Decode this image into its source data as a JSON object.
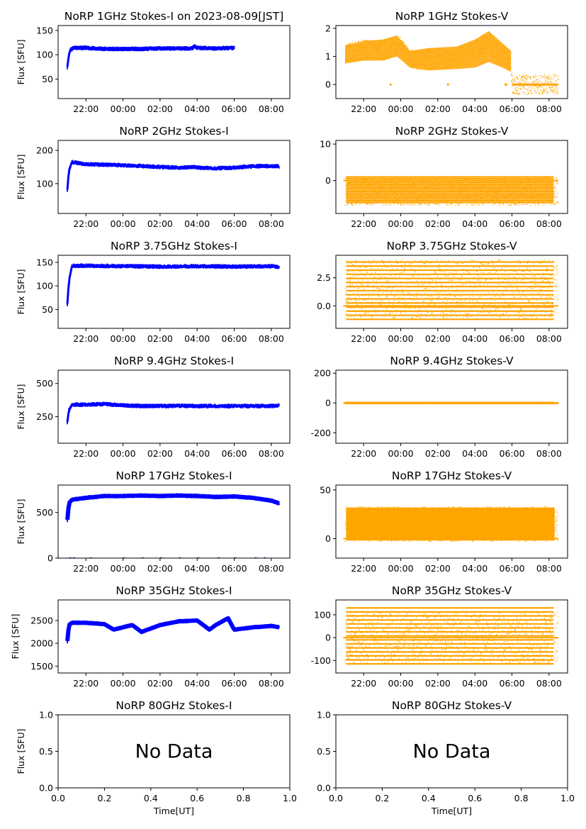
{
  "figure": {
    "xlabel": "Time[UT]",
    "ylabel": "Flux [SFU]",
    "no_data_text": "No Data",
    "time_ticks": [
      "22:00",
      "00:00",
      "02:00",
      "04:00",
      "06:00",
      "08:00"
    ],
    "unit_ticks": [
      "0.0",
      "0.2",
      "0.4",
      "0.6",
      "0.8",
      "1.0"
    ],
    "colors": {
      "stokes_i": "#0000ff",
      "stokes_v": "#ffa500",
      "axes": "#000000"
    }
  },
  "chart_data": [
    {
      "type": "scatter",
      "title": "NoRP 1GHz Stokes-I on 2023-08-09[JST]",
      "ylabel": "Flux [SFU]",
      "ylim": [
        10,
        160
      ],
      "yticks": [
        "50",
        "100",
        "150"
      ],
      "xlim": [
        "20:30",
        "09:00"
      ],
      "start": "21:00",
      "end": "06:00",
      "series": [
        {
          "x": [
            "21:00",
            "21:05",
            "21:10",
            "21:20",
            "22:00",
            "23:00",
            "00:00",
            "01:00",
            "02:00",
            "03:00",
            "03:45",
            "03:50",
            "04:00",
            "05:00",
            "06:00"
          ],
          "values": [
            75,
            100,
            110,
            114,
            114,
            112,
            112,
            112,
            113,
            113,
            113,
            118,
            114,
            113,
            114
          ]
        }
      ]
    },
    {
      "type": "scatter",
      "title": "NoRP 1GHz Stokes-V",
      "ylim": [
        -0.5,
        2.1
      ],
      "yticks": [
        "0",
        "1",
        "2"
      ],
      "xlim": [
        "20:30",
        "09:00"
      ],
      "start": "21:00",
      "end": "08:30",
      "series": [
        {
          "x": [
            "21:00",
            "22:00",
            "23:00",
            "00:00",
            "00:30",
            "01:00",
            "02:00",
            "03:00",
            "04:00",
            "04:45",
            "05:00",
            "05:30",
            "05:55",
            "06:00",
            "07:00",
            "08:30"
          ],
          "values": [
            1.1,
            1.25,
            1.2,
            1.35,
            0.9,
            0.85,
            0.95,
            0.9,
            1.2,
            1.6,
            1.3,
            1.0,
            0.8,
            0,
            0,
            0
          ]
        }
      ]
    },
    {
      "type": "scatter",
      "title": "NoRP 2GHz Stokes-I",
      "ylim": [
        10,
        230
      ],
      "yticks": [
        "100",
        "200"
      ],
      "xlim": [
        "20:30",
        "09:00"
      ],
      "start": "21:00",
      "end": "08:25",
      "series": [
        {
          "x": [
            "21:00",
            "21:05",
            "21:15",
            "22:00",
            "23:00",
            "00:00",
            "01:00",
            "02:00",
            "03:00",
            "03:50",
            "04:00",
            "05:00",
            "06:00",
            "07:00",
            "08:00",
            "08:25"
          ],
          "values": [
            82,
            140,
            165,
            158,
            157,
            155,
            153,
            150,
            148,
            150,
            148,
            146,
            148,
            152,
            153,
            152
          ]
        }
      ]
    },
    {
      "type": "scatter",
      "title": "NoRP 2GHz Stokes-V",
      "ylim": [
        -9,
        11
      ],
      "yticks": [
        "0",
        "10"
      ],
      "xlim": [
        "20:30",
        "09:00"
      ],
      "start": "21:00",
      "end": "08:30",
      "series": [
        {
          "x": [
            "21:00",
            "08:30"
          ],
          "values": [
            -3,
            -3
          ]
        }
      ]
    },
    {
      "type": "scatter",
      "title": "NoRP 3.75GHz Stokes-I",
      "ylim": [
        10,
        165
      ],
      "yticks": [
        "50",
        "100",
        "150"
      ],
      "xlim": [
        "20:30",
        "09:00"
      ],
      "start": "21:00",
      "end": "08:25",
      "series": [
        {
          "x": [
            "21:00",
            "21:05",
            "21:15",
            "22:00",
            "00:00",
            "02:00",
            "04:00",
            "06:00",
            "08:00",
            "08:25"
          ],
          "values": [
            62,
            110,
            143,
            143,
            142,
            141,
            142,
            141,
            142,
            140
          ]
        }
      ]
    },
    {
      "type": "scatter",
      "title": "NoRP 3.75GHz Stokes-V",
      "ylim": [
        -2,
        4.5
      ],
      "yticks": [
        "0.0",
        "2.5"
      ],
      "xlim": [
        "20:30",
        "09:00"
      ],
      "start": "21:00",
      "end": "08:30",
      "series": [
        {
          "x": [
            "21:00",
            "08:30"
          ],
          "values": [
            1.5,
            1.5
          ]
        }
      ]
    },
    {
      "type": "scatter",
      "title": "NoRP 9.4GHz Stokes-I",
      "ylim": [
        50,
        600
      ],
      "yticks": [
        "250",
        "500"
      ],
      "xlim": [
        "20:30",
        "09:00"
      ],
      "start": "21:00",
      "end": "08:25",
      "series": [
        {
          "x": [
            "21:00",
            "21:05",
            "21:15",
            "22:00",
            "23:00",
            "00:00",
            "01:00",
            "02:00",
            "03:00",
            "04:00",
            "06:00",
            "08:00",
            "08:25"
          ],
          "values": [
            210,
            300,
            340,
            340,
            345,
            335,
            330,
            330,
            332,
            330,
            330,
            330,
            335
          ]
        }
      ]
    },
    {
      "type": "scatter",
      "title": "NoRP 9.4GHz Stokes-V",
      "ylim": [
        -270,
        220
      ],
      "yticks": [
        "-200",
        "0",
        "200"
      ],
      "xlim": [
        "20:30",
        "09:00"
      ],
      "start": "21:00",
      "end": "08:30",
      "series": [
        {
          "x": [
            "21:00",
            "08:30"
          ],
          "values": [
            0,
            0
          ]
        }
      ]
    },
    {
      "type": "scatter",
      "title": "NoRP 17GHz Stokes-I",
      "ylim": [
        0,
        800
      ],
      "yticks": [
        "0",
        "500"
      ],
      "xlim": [
        "20:30",
        "09:00"
      ],
      "start": "21:00",
      "end": "08:25",
      "series": [
        {
          "x": [
            "21:00",
            "21:05",
            "21:15",
            "22:00",
            "23:00",
            "00:00",
            "01:00",
            "02:00",
            "03:00",
            "04:00",
            "05:00",
            "06:00",
            "07:00",
            "08:00",
            "08:25"
          ],
          "values": [
            420,
            600,
            640,
            660,
            680,
            680,
            685,
            680,
            685,
            680,
            670,
            675,
            660,
            630,
            600
          ]
        }
      ]
    },
    {
      "type": "scatter",
      "title": "NoRP 17GHz Stokes-V",
      "ylim": [
        -20,
        55
      ],
      "yticks": [
        "0",
        "50"
      ],
      "xlim": [
        "20:30",
        "09:00"
      ],
      "start": "21:00",
      "end": "08:30",
      "series": [
        {
          "x": [
            "21:00",
            "08:30"
          ],
          "values": [
            15,
            15
          ]
        }
      ]
    },
    {
      "type": "scatter",
      "title": "NoRP 35GHz Stokes-I",
      "ylim": [
        1350,
        2950
      ],
      "yticks": [
        "1500",
        "2000",
        "2500"
      ],
      "xlim": [
        "20:30",
        "09:00"
      ],
      "start": "21:00",
      "end": "08:25",
      "series": [
        {
          "x": [
            "21:00",
            "21:05",
            "21:15",
            "22:00",
            "23:00",
            "23:30",
            "00:00",
            "00:30",
            "01:00",
            "02:00",
            "03:00",
            "04:00",
            "04:40",
            "05:00",
            "05:40",
            "06:00",
            "07:00",
            "08:00",
            "08:25"
          ],
          "values": [
            2050,
            2400,
            2450,
            2450,
            2420,
            2300,
            2350,
            2400,
            2250,
            2400,
            2480,
            2500,
            2300,
            2400,
            2550,
            2300,
            2350,
            2380,
            2350
          ]
        }
      ]
    },
    {
      "type": "scatter",
      "title": "NoRP 35GHz Stokes-V",
      "ylim": [
        -155,
        165
      ],
      "yticks": [
        "-100",
        "0",
        "100"
      ],
      "xlim": [
        "20:30",
        "09:00"
      ],
      "start": "21:00",
      "end": "08:30",
      "series": [
        {
          "x": [
            "21:00",
            "08:30"
          ],
          "values": [
            0,
            0
          ]
        }
      ]
    },
    {
      "type": "scatter",
      "title": "NoRP 80GHz Stokes-I",
      "ylim": [
        0,
        1
      ],
      "yticks": [
        "0.0",
        "0.5",
        "1.0"
      ],
      "xlim": [
        0,
        1
      ],
      "no_data": true,
      "series": []
    },
    {
      "type": "scatter",
      "title": "NoRP 80GHz Stokes-V",
      "ylim": [
        0,
        1
      ],
      "yticks": [
        "0.0",
        "0.5",
        "1.0"
      ],
      "xlim": [
        0,
        1
      ],
      "no_data": true,
      "series": []
    }
  ]
}
